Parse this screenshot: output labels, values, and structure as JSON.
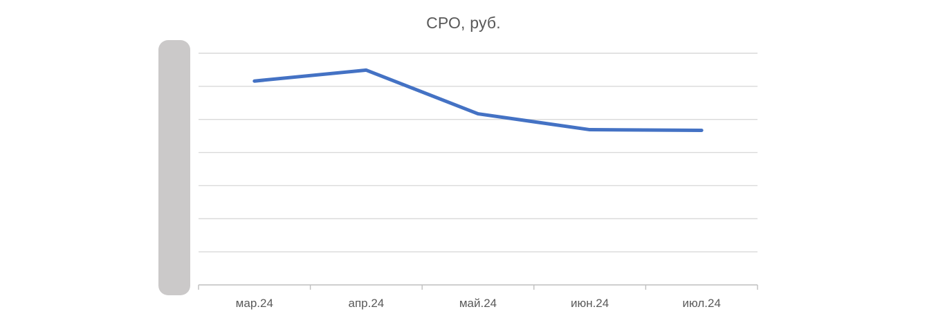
{
  "chart_data": {
    "type": "line",
    "title": "СРО, руб.",
    "categories": [
      "мар.24",
      "апр.24",
      "май.24",
      "июн.24",
      "июл.24"
    ],
    "series": [
      {
        "name": "СРО, руб.",
        "values": [
          6.16,
          6.49,
          5.17,
          4.69,
          4.67
        ]
      }
    ],
    "value_units": "gridline intervals above x-axis (y-axis tick labels are covered by a gray redaction block, so absolute ruble values are not visible)",
    "xlabel": "",
    "ylabel": "",
    "ylim": [
      0,
      7
    ],
    "gridline_count": 7,
    "grid": "horizontal gridlines on, vertical off",
    "legend": "none",
    "x_tick_marks": "short ticks below axis at each category boundary"
  },
  "redaction": {
    "present": true,
    "covers": "y-axis tick labels",
    "shape": "vertical rounded rectangle"
  },
  "colors": {
    "line": "#4472C4",
    "title_text": "#595959",
    "axis_label_text": "#595959",
    "gridline": "#D9D9D9",
    "axis_line": "#BFBFBF",
    "redaction_fill": "#CBC9C9",
    "background": "#FFFFFF"
  }
}
